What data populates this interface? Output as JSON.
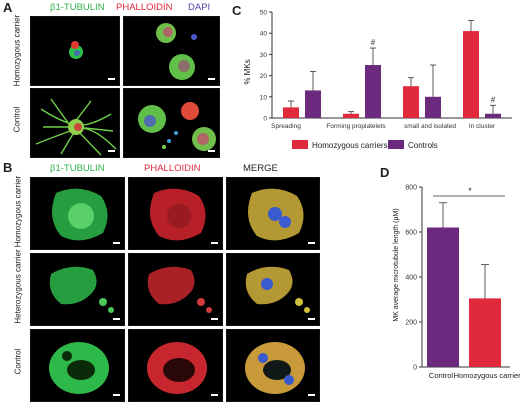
{
  "panels": {
    "a": "A",
    "b": "B",
    "c": "C",
    "d": "D"
  },
  "panel_a": {
    "stains": [
      "β1-TUBULIN",
      "PHALLOIDIN",
      "DAPI"
    ],
    "rows": [
      "Homozygous carrier",
      "Control"
    ]
  },
  "panel_b": {
    "columns": [
      "β1-TUBULIN",
      "PHALLOIDIN",
      "MERGE"
    ],
    "rows": [
      "Homozygous carrier",
      "Heterozygous carrier",
      "Control"
    ]
  },
  "colors": {
    "homozygous": "#e0293b",
    "control": "#6b2a7e",
    "tubulin_text": "#2fb34a",
    "phalloidin_text": "#e0293b",
    "dapi_text": "#5b3fa8"
  },
  "chart_data": [
    {
      "panel": "C",
      "type": "bar",
      "ylabel": "% MKs",
      "ylim": [
        0,
        50
      ],
      "yticks": [
        0,
        10,
        20,
        30,
        40,
        50
      ],
      "categories": [
        "Spreading",
        "Forming proplatelets",
        "small and isolated",
        "In cluster"
      ],
      "series": [
        {
          "name": "Homozygous carriers",
          "values": [
            5,
            2,
            15,
            41
          ],
          "errors": [
            3,
            1,
            4,
            5
          ]
        },
        {
          "name": "Controls",
          "values": [
            13,
            25,
            10,
            2
          ],
          "errors": [
            9,
            8,
            15,
            4
          ]
        }
      ],
      "annotations": [
        {
          "text": "#",
          "category": 1,
          "series": 1
        },
        {
          "text": "#",
          "category": 3,
          "series": 1
        }
      ],
      "legend": "bottom"
    },
    {
      "panel": "D",
      "type": "bar",
      "ylabel": "MK average microtubule length (μM)",
      "ylim": [
        0,
        800
      ],
      "yticks": [
        0,
        200,
        400,
        600,
        800
      ],
      "categories": [
        "Control",
        "Homozygous carriers"
      ],
      "values": [
        620,
        305
      ],
      "errors": [
        110,
        150
      ],
      "annotation": "*"
    }
  ]
}
